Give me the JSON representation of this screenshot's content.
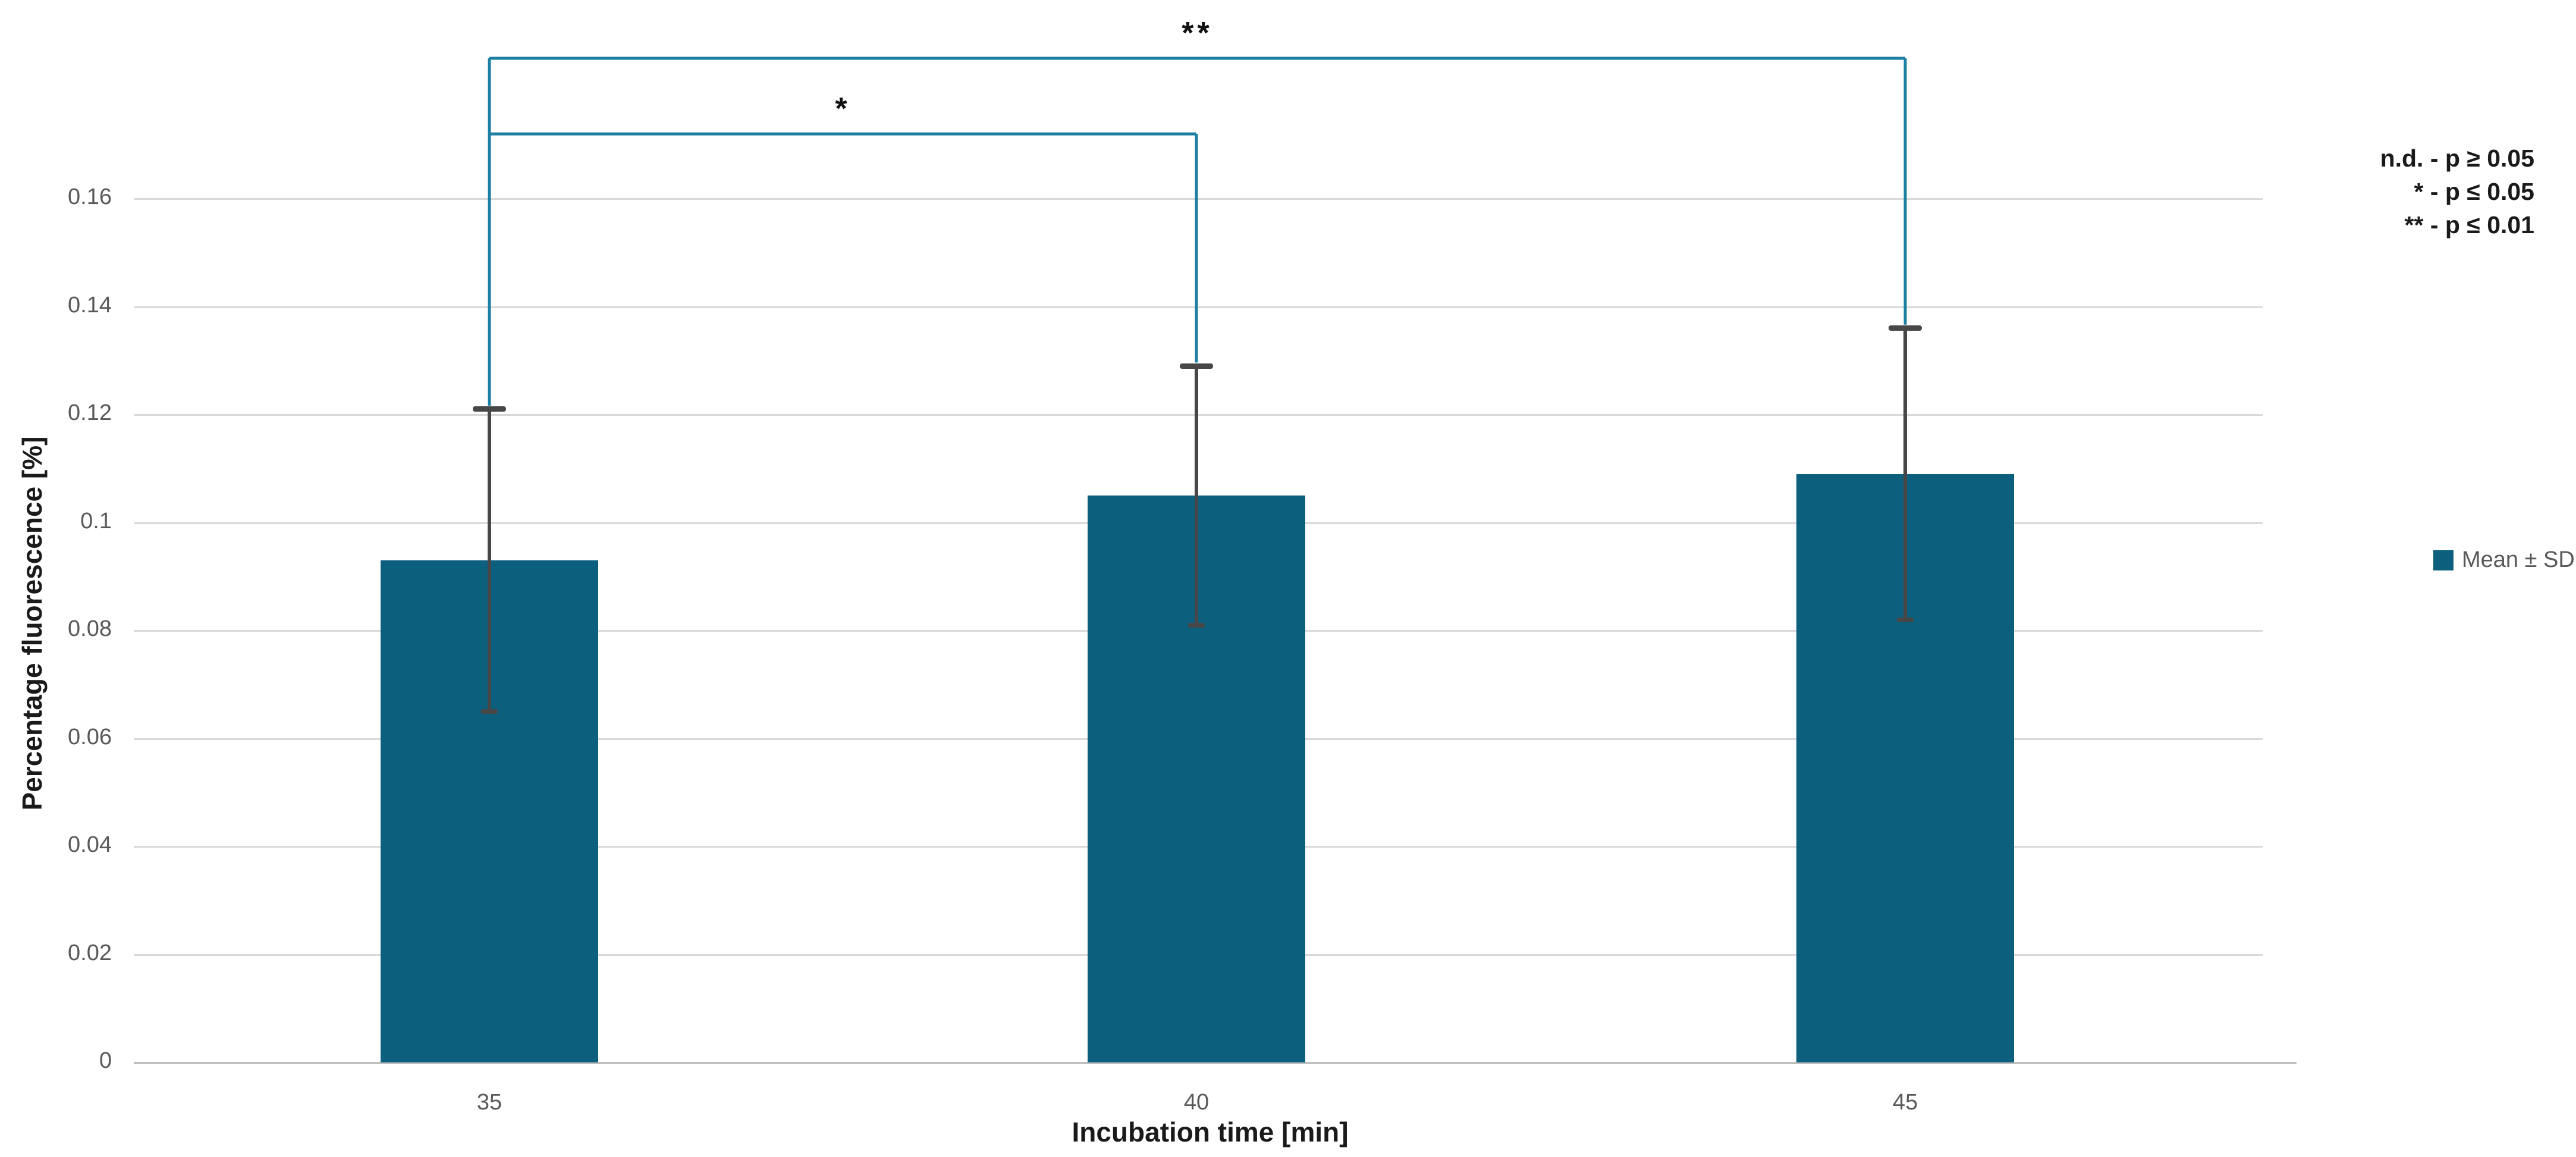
{
  "chart_data": {
    "type": "bar",
    "title": "",
    "xlabel": "Incubation time [min]",
    "ylabel": "Percentage fluorescence [%]",
    "categories": [
      "35",
      "40",
      "45"
    ],
    "series": [
      {
        "name": "Mean ± SD",
        "values": [
          0.093,
          0.105,
          0.109
        ],
        "error_upper": [
          0.121,
          0.129,
          0.136
        ],
        "error_lower": [
          0.065,
          0.081,
          0.082
        ]
      }
    ],
    "ylim": [
      0,
      0.186
    ],
    "yticks": [
      "0",
      "0.02",
      "0.04",
      "0.06",
      "0.08",
      "0.1",
      "0.12",
      "0.14",
      "0.16"
    ],
    "grid": true,
    "legend": {
      "label": "Mean ± SD",
      "position": "right"
    },
    "significance_brackets": [
      {
        "label": "**",
        "from": 0,
        "to": 2,
        "y": 0.186
      },
      {
        "label": "*",
        "from": 0,
        "to": 1,
        "y": 0.172
      }
    ],
    "notes": [
      "n.d. - p ≥ 0.05",
      "* - p ≤ 0.05",
      "** - p ≤ 0.01"
    ],
    "colors": {
      "bar": "#0C5F7D",
      "bracket": "#1C7FA3",
      "error_bar": "#474747",
      "gridline": "#D9D9D9",
      "axis_line": "#BFBFBF",
      "tick_text": "#595959",
      "title_text": "#1A1A1A",
      "legend_text": "#595959",
      "note_text": "#1A1A1A"
    }
  }
}
